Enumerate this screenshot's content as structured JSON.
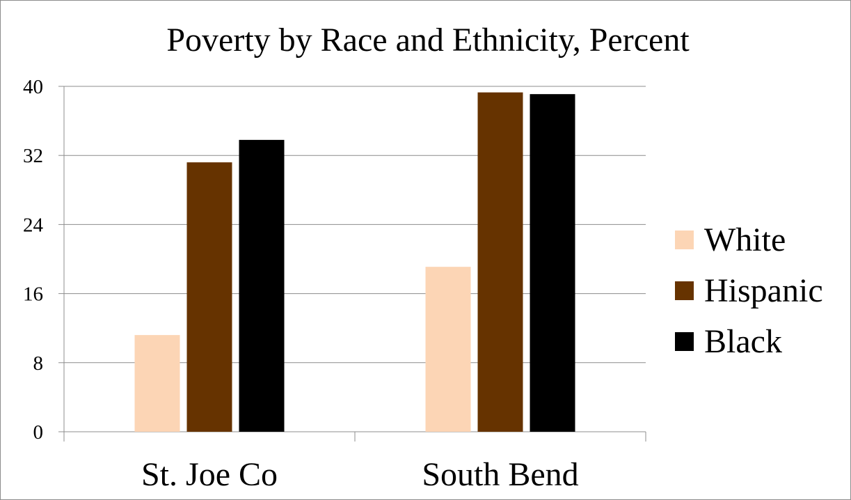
{
  "chart_data": {
    "type": "bar",
    "title": "Poverty by Race and Ethnicity, Percent",
    "categories": [
      "St. Joe Co",
      "South Bend"
    ],
    "series": [
      {
        "name": "White",
        "values": [
          11.2,
          19.1
        ],
        "color": "#fcd5b5"
      },
      {
        "name": "Hispanic",
        "values": [
          31.2,
          39.3
        ],
        "color": "#663300"
      },
      {
        "name": "Black",
        "values": [
          33.8,
          39.1
        ],
        "color": "#000000"
      }
    ],
    "yticks": [
      "0",
      "8",
      "16",
      "24",
      "32",
      "40"
    ],
    "ylim": [
      0,
      40
    ],
    "grid": true,
    "legend_position": "right"
  }
}
